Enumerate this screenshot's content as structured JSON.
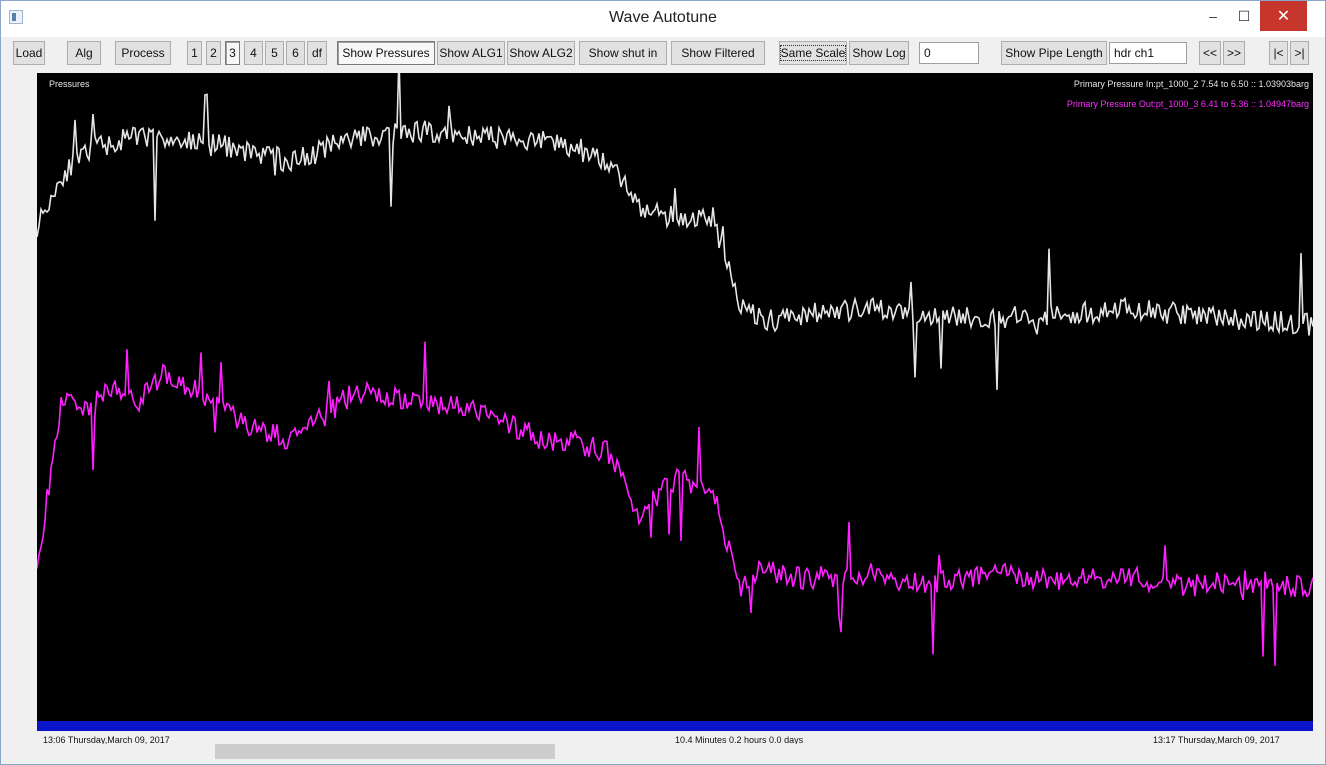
{
  "window": {
    "title": "Wave Autotune"
  },
  "toolbar": {
    "load": "Load",
    "alg": "Alg",
    "process": "Process",
    "pages": [
      "1",
      "2",
      "3",
      "4",
      "5",
      "6",
      "df"
    ],
    "active_page": "3",
    "show_pressures": "Show Pressures",
    "show_alg1": "Show ALG1",
    "show_alg2": "Show ALG2",
    "show_shut_in": "Show shut in",
    "show_filtered": "Show Filtered",
    "same_scale": "Same Scale",
    "show_log": "Show Log",
    "value_field": "0",
    "show_pipe_length": "Show Pipe Length",
    "channel_field": "hdr ch1",
    "nav_prev": "<<",
    "nav_next": ">>",
    "nav_first": "|<",
    "nav_last": ">|"
  },
  "plot": {
    "label": "Pressures",
    "legend_in": "Primary Pressure In:pt_1000_2 7.54 to 6.50 :: 1.03903barg",
    "legend_out": "Primary Pressure Out:pt_1000_3 6.41 to 5.36 :: 1.04947barg",
    "colors": {
      "background": "#000000",
      "in": "#e6e6e6",
      "out": "#ff20ff",
      "timebar": "#0a14c8"
    }
  },
  "footer": {
    "start_time": "13:06 Thursday,March 09, 2017",
    "duration": "10.4 Minutes   0.2 hours   0.0 days",
    "end_time": "13:17 Thursday,March 09, 2017"
  },
  "chart_data": {
    "type": "line",
    "xlabel": "",
    "ylabel": "",
    "series": [
      {
        "name": "Primary Pressure In:pt_1000_2 7.54 to 6.50 :: 1.03903barg",
        "color": "#e6e6e6",
        "x": [
          0,
          0.02,
          0.04,
          0.08,
          0.12,
          0.16,
          0.2,
          0.25,
          0.3,
          0.35,
          0.4,
          0.42,
          0.45,
          0.47,
          0.5,
          0.53,
          0.55,
          0.57,
          0.6,
          0.65,
          0.7,
          0.75,
          0.8,
          0.85,
          0.9,
          0.95,
          1.0
        ],
        "values": [
          6.95,
          7.15,
          7.25,
          7.3,
          7.28,
          7.25,
          7.2,
          7.3,
          7.32,
          7.3,
          7.28,
          7.26,
          7.2,
          7.02,
          6.98,
          6.98,
          6.65,
          6.58,
          6.6,
          6.62,
          6.6,
          6.58,
          6.6,
          6.62,
          6.6,
          6.58,
          6.56
        ]
      },
      {
        "name": "Primary Pressure Out:pt_1000_3 6.41 to 5.36 :: 1.04947barg",
        "color": "#ff20ff",
        "x": [
          0,
          0.02,
          0.04,
          0.06,
          0.08,
          0.1,
          0.12,
          0.16,
          0.2,
          0.25,
          0.3,
          0.35,
          0.4,
          0.42,
          0.45,
          0.47,
          0.5,
          0.53,
          0.55,
          0.57,
          0.6,
          0.65,
          0.7,
          0.75,
          0.8,
          0.85,
          0.9,
          0.95,
          1.0
        ],
        "values": [
          5.6,
          6.28,
          6.22,
          6.33,
          6.26,
          6.36,
          6.32,
          6.18,
          6.1,
          6.3,
          6.25,
          6.22,
          6.1,
          6.1,
          6.05,
          5.8,
          5.95,
          5.92,
          5.52,
          5.6,
          5.56,
          5.58,
          5.54,
          5.58,
          5.55,
          5.57,
          5.53,
          5.55,
          5.52
        ]
      }
    ]
  }
}
